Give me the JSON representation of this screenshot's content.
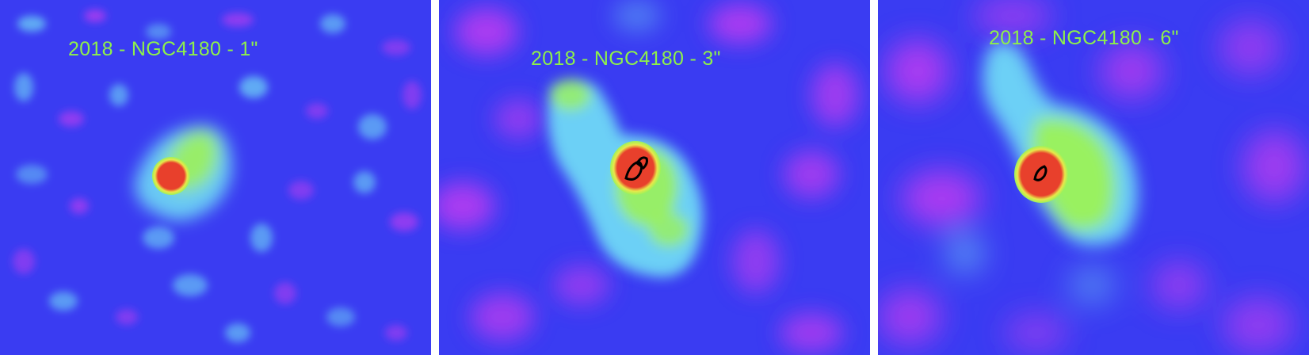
{
  "panels": [
    {
      "label": "2018 - NGC4180 - 1\""
    },
    {
      "label": "2018 - NGC4180 - 3\""
    },
    {
      "label": "2018 - NGC4180 - 6\""
    }
  ],
  "colors": {
    "background_field": "#3a3cf2",
    "noise_magenta": "#c63cf0",
    "noise_cyan": "#6fd8f5",
    "emission_green": "#9cf25a",
    "emission_yellow": "#e8e84a",
    "core_red": "#e8402c",
    "contour": "#000000",
    "label": "#8ef04a",
    "separator": "#ffffff"
  }
}
